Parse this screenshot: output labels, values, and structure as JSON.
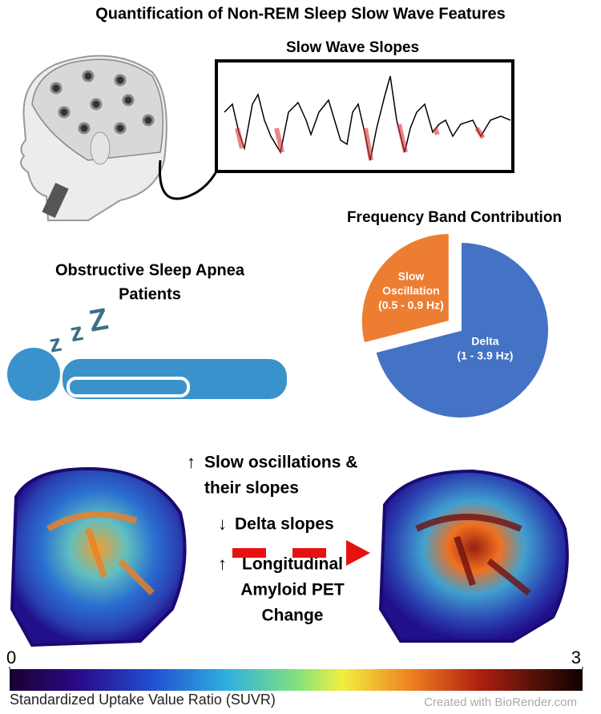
{
  "title": "Quantification of Non-REM Sleep Slow Wave Features",
  "eeg": {
    "title": "Slow Wave Slopes"
  },
  "pie": {
    "title": "Frequency Band Contribution",
    "slices": [
      {
        "label_lines": [
          "Delta",
          "(1 - 3.9 Hz)"
        ],
        "value": 71,
        "color": "#4472c4"
      },
      {
        "label_lines": [
          "Slow",
          "Oscillation",
          "(0.5 - 0.9 Hz)"
        ],
        "value": 29,
        "color": "#ed7d31"
      }
    ]
  },
  "patients": {
    "lines": [
      "Obstructive Sleep Apnea",
      "Patients"
    ],
    "snore": [
      "z",
      "z",
      "Z"
    ]
  },
  "findings": [
    {
      "arrow": "↑",
      "lines": [
        "Slow oscillations &",
        "their slopes"
      ]
    },
    {
      "arrow": "↓",
      "lines": [
        "Delta slopes"
      ]
    },
    {
      "arrow": "↑",
      "lines": [
        "Longitudinal",
        "Amyloid PET",
        "Change"
      ]
    }
  ],
  "colorbar": {
    "label": "Standardized Uptake Value Ratio (SUVR)",
    "lim": [
      0,
      3
    ],
    "ticks": [
      0,
      3
    ]
  },
  "credit": "Created with BioRender.com"
}
